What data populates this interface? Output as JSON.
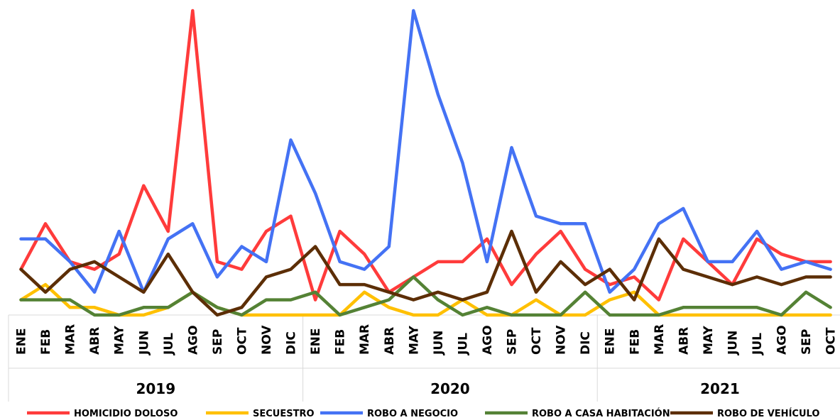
{
  "chart_data": {
    "type": "line",
    "title": "",
    "xlabel": "",
    "ylabel": "",
    "ylim": [
      0,
      9
    ],
    "grid": false,
    "legend_position": "bottom",
    "years": [
      {
        "label": "2019",
        "months": [
          "ENE",
          "FEB",
          "MAR",
          "ABR",
          "MAY",
          "JUN",
          "JUL",
          "AGO",
          "SEP",
          "OCT",
          "NOV",
          "DIC"
        ]
      },
      {
        "label": "2020",
        "months": [
          "ENE",
          "FEB",
          "MAR",
          "ABR",
          "MAY",
          "JUN",
          "JUL",
          "AGO",
          "SEP",
          "OCT",
          "NOV",
          "DIC"
        ]
      },
      {
        "label": "2021",
        "months": [
          "ENE",
          "FEB",
          "MAR",
          "ABR",
          "MAY",
          "JUN",
          "JUL",
          "AGO",
          "SEP",
          "OCT"
        ]
      }
    ],
    "series": [
      {
        "name": "HOMICIDIO DOLOSO",
        "color": "#ff3b3b",
        "values": [
          1.2,
          2.4,
          1.4,
          1.2,
          1.6,
          3.4,
          2.2,
          8.0,
          1.4,
          1.2,
          2.2,
          2.6,
          0.4,
          2.2,
          1.6,
          0.6,
          1.0,
          1.4,
          1.4,
          2.0,
          0.8,
          1.6,
          2.2,
          1.2,
          0.8,
          1.0,
          0.4,
          2.0,
          1.4,
          0.8,
          2.0,
          1.6,
          1.4,
          1.4
        ]
      },
      {
        "name": "SECUESTRO",
        "color": "#ffc000",
        "values": [
          0.4,
          0.8,
          0.2,
          0.2,
          0.0,
          0.0,
          0.2,
          0.6,
          0.2,
          0.0,
          0.0,
          0.0,
          0.0,
          0.0,
          0.6,
          0.2,
          0.0,
          0.0,
          0.4,
          0.0,
          0.0,
          0.4,
          0.0,
          0.0,
          0.4,
          0.6,
          0.0,
          0.0,
          0.0,
          0.0,
          0.0,
          0.0,
          0.0,
          0.0
        ]
      },
      {
        "name": "ROBO A NEGOCIO",
        "color": "#4472f4",
        "values": [
          2.0,
          2.0,
          1.4,
          0.6,
          2.2,
          0.6,
          2.0,
          2.4,
          1.0,
          1.8,
          1.4,
          4.6,
          3.2,
          1.4,
          1.2,
          1.8,
          8.0,
          5.8,
          4.0,
          1.4,
          4.4,
          2.6,
          2.4,
          2.4,
          0.6,
          1.2,
          2.4,
          2.8,
          1.4,
          1.4,
          2.2,
          1.2,
          1.4,
          1.2
        ]
      },
      {
        "name": "ROBO A CASA HABITACIÓN",
        "color": "#548235",
        "values": [
          0.4,
          0.4,
          0.4,
          0.0,
          0.0,
          0.2,
          0.2,
          0.6,
          0.2,
          0.0,
          0.4,
          0.4,
          0.6,
          0.0,
          0.2,
          0.4,
          1.0,
          0.4,
          0.0,
          0.2,
          0.0,
          0.0,
          0.0,
          0.6,
          0.0,
          0.0,
          0.0,
          0.2,
          0.2,
          0.2,
          0.2,
          0.0,
          0.6,
          0.2
        ]
      },
      {
        "name": "ROBO DE VEHÍCULO",
        "color": "#5c2e06",
        "values": [
          1.2,
          0.6,
          1.2,
          1.4,
          1.0,
          0.6,
          1.6,
          0.6,
          0.0,
          0.2,
          1.0,
          1.2,
          1.8,
          0.8,
          0.8,
          0.6,
          0.4,
          0.6,
          0.4,
          0.6,
          2.2,
          0.6,
          1.4,
          0.8,
          1.2,
          0.4,
          2.0,
          1.2,
          1.0,
          0.8,
          1.0,
          0.8,
          1.0,
          1.0
        ]
      }
    ]
  }
}
